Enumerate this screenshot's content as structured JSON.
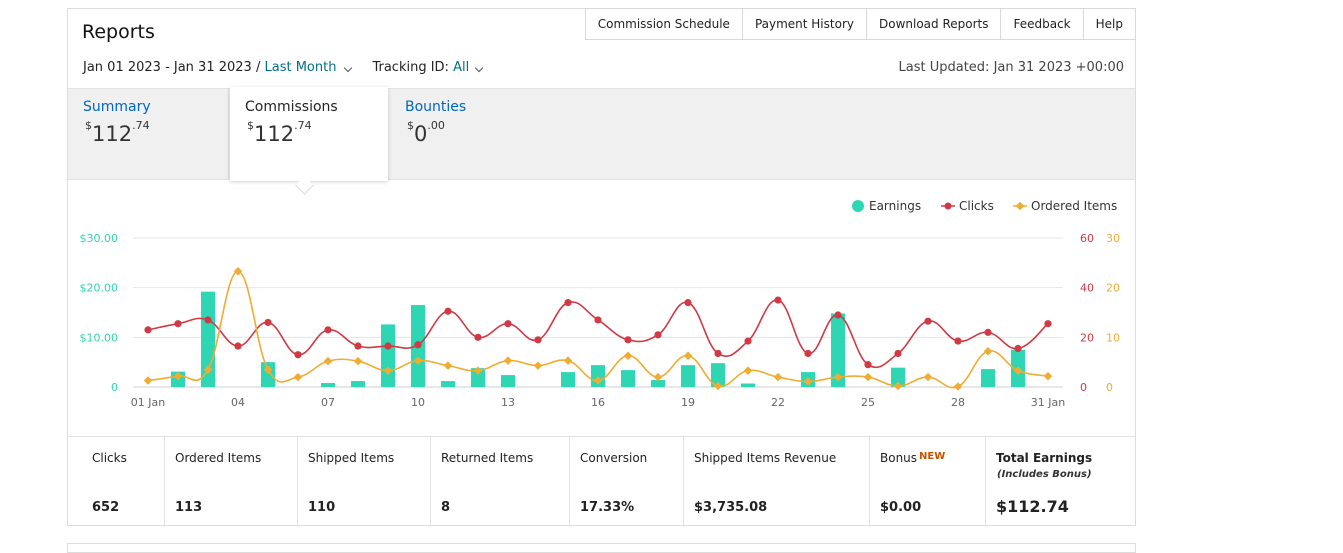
{
  "header": {
    "title": "Reports",
    "nav": [
      "Commission Schedule",
      "Payment History",
      "Download Reports",
      "Feedback",
      "Help"
    ]
  },
  "filters": {
    "date_range": "Jan 01 2023 - Jan 31 2023",
    "separator": " / ",
    "period": "Last Month",
    "tracking_label": "Tracking ID:",
    "tracking_value": "All"
  },
  "last_updated": "Last Updated: Jan 31 2023 +00:00",
  "tabs": [
    {
      "label": "Summary",
      "currency": "$",
      "whole": "112",
      "cents": ".74"
    },
    {
      "label": "Commissions",
      "currency": "$",
      "whole": "112",
      "cents": ".74"
    },
    {
      "label": "Bounties",
      "currency": "$",
      "whole": "0",
      "cents": ".00"
    }
  ],
  "colors": {
    "earnings": "#2ed6b4",
    "clicks": "#cf3a45",
    "ordered": "#f0ac32",
    "link": "#007185",
    "new_badge": "#c45500"
  },
  "chart_data": {
    "type": "bar",
    "x": [
      "01 Jan",
      "02 Jan",
      "03 Jan",
      "04 Jan",
      "05 Jan",
      "06 Jan",
      "07 Jan",
      "08 Jan",
      "09 Jan",
      "10 Jan",
      "11 Jan",
      "12 Jan",
      "13 Jan",
      "14 Jan",
      "15 Jan",
      "16 Jan",
      "17 Jan",
      "18 Jan",
      "19 Jan",
      "20 Jan",
      "21 Jan",
      "22 Jan",
      "23 Jan",
      "24 Jan",
      "25 Jan",
      "26 Jan",
      "27 Jan",
      "28 Jan",
      "29 Jan",
      "30 Jan",
      "31 Jan"
    ],
    "x_ticks": [
      "01 Jan",
      "04",
      "07",
      "10",
      "13",
      "16",
      "19",
      "22",
      "25",
      "28",
      "31 Jan"
    ],
    "legend": [
      "Earnings",
      "Clicks",
      "Ordered Items"
    ],
    "legend_position": "top-right",
    "y_left_ticks": [
      "$30.00",
      "$20.00",
      "$10.00",
      "0"
    ],
    "y_right1_ticks": [
      "60",
      "40",
      "20",
      "0"
    ],
    "y_right2_ticks": [
      "30",
      "20",
      "10",
      "0"
    ],
    "ylim_earnings": [
      0,
      30
    ],
    "ylim_clicks": [
      0,
      60
    ],
    "ylim_ordered": [
      0,
      30
    ],
    "series": [
      {
        "name": "Earnings",
        "type": "bar",
        "axis": "left",
        "values": [
          0,
          3.1,
          19.2,
          0,
          5.0,
          0,
          0.8,
          1.2,
          12.6,
          16.5,
          1.2,
          3.8,
          2.4,
          0,
          3.0,
          4.4,
          3.4,
          1.4,
          4.4,
          4.8,
          0.7,
          0,
          3.0,
          14.8,
          0,
          3.9,
          0,
          0,
          3.6,
          7.5,
          0
        ]
      },
      {
        "name": "Clicks",
        "type": "line",
        "axis": "right1",
        "values": [
          23,
          25.5,
          27,
          16.5,
          26,
          13,
          23,
          16.5,
          16.5,
          17,
          30.5,
          20,
          25.5,
          19,
          34,
          27,
          19,
          21,
          34,
          13.5,
          18.5,
          35,
          13.5,
          29,
          9,
          13.5,
          26.5,
          18.5,
          22,
          15.5,
          25.5
        ]
      },
      {
        "name": "Ordered Items",
        "type": "line",
        "axis": "right2",
        "values": [
          1.3,
          2.2,
          3.5,
          23.3,
          3.5,
          2.0,
          5.2,
          5.2,
          3.3,
          5.3,
          4.3,
          3.3,
          5.3,
          4.3,
          5.3,
          1.3,
          6.3,
          2.0,
          6.3,
          0.2,
          3.3,
          2.0,
          1.1,
          2.0,
          2.0,
          0.2,
          2.0,
          0.1,
          7.2,
          3.3,
          2.2
        ]
      }
    ]
  },
  "stats": [
    {
      "label": "Clicks",
      "value": "652"
    },
    {
      "label": "Ordered Items",
      "value": "113"
    },
    {
      "label": "Shipped Items",
      "value": "110"
    },
    {
      "label": "Returned Items",
      "value": "8"
    },
    {
      "label": "Conversion",
      "value": "17.33%"
    },
    {
      "label": "Shipped Items Revenue",
      "value": "$3,735.08"
    },
    {
      "label": "Bonus",
      "badge": "NEW",
      "value": "$0.00"
    },
    {
      "label": "Total Earnings",
      "sublabel": "(Includes Bonus)",
      "value": "$112.74"
    }
  ]
}
